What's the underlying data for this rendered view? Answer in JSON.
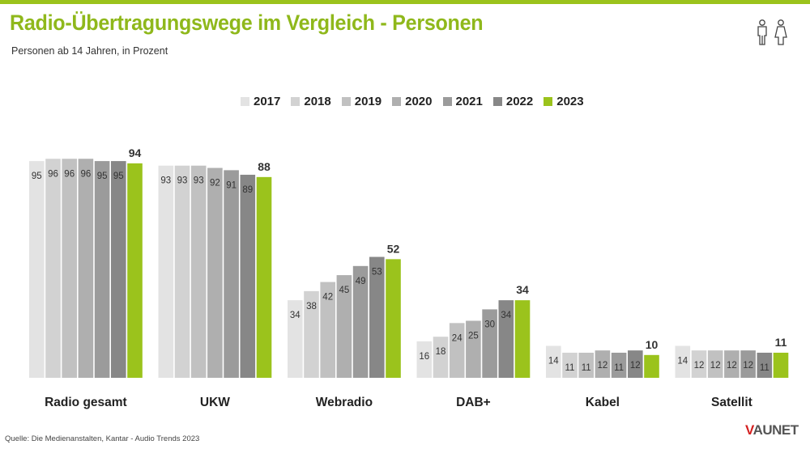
{
  "header": {
    "title": "Radio-Übertragungswege im Vergleich - Personen",
    "subtitle": "Personen ab 14 Jahren, in Prozent"
  },
  "footer": {
    "source": "Quelle: Die Medienanstalten, Kantar - Audio Trends 2023",
    "logo_accent": "V",
    "logo_rest": "AUNET"
  },
  "icons": {
    "people": "man-woman-icon"
  },
  "colors": {
    "accent": "#9bc31c",
    "series": [
      "#e3e3e3",
      "#d2d2d2",
      "#c1c1c1",
      "#afafaf",
      "#9b9b9b",
      "#878787",
      "#9bc31c"
    ]
  },
  "chart_data": {
    "type": "bar",
    "categories": [
      "Radio gesamt",
      "UKW",
      "Webradio",
      "DAB+",
      "Kabel",
      "Satellit"
    ],
    "series": [
      {
        "name": "2017",
        "values": [
          95,
          93,
          34,
          16,
          14,
          14
        ]
      },
      {
        "name": "2018",
        "values": [
          96,
          93,
          38,
          18,
          11,
          12
        ]
      },
      {
        "name": "2019",
        "values": [
          96,
          93,
          42,
          24,
          11,
          12
        ]
      },
      {
        "name": "2020",
        "values": [
          96,
          92,
          45,
          25,
          12,
          12
        ]
      },
      {
        "name": "2021",
        "values": [
          95,
          91,
          49,
          30,
          11,
          12
        ]
      },
      {
        "name": "2022",
        "values": [
          95,
          89,
          53,
          34,
          12,
          11
        ]
      },
      {
        "name": "2023",
        "values": [
          94,
          88,
          52,
          34,
          10,
          11
        ]
      }
    ],
    "ylim": [
      0,
      100
    ],
    "grid": false,
    "legend_position": "top-center"
  }
}
